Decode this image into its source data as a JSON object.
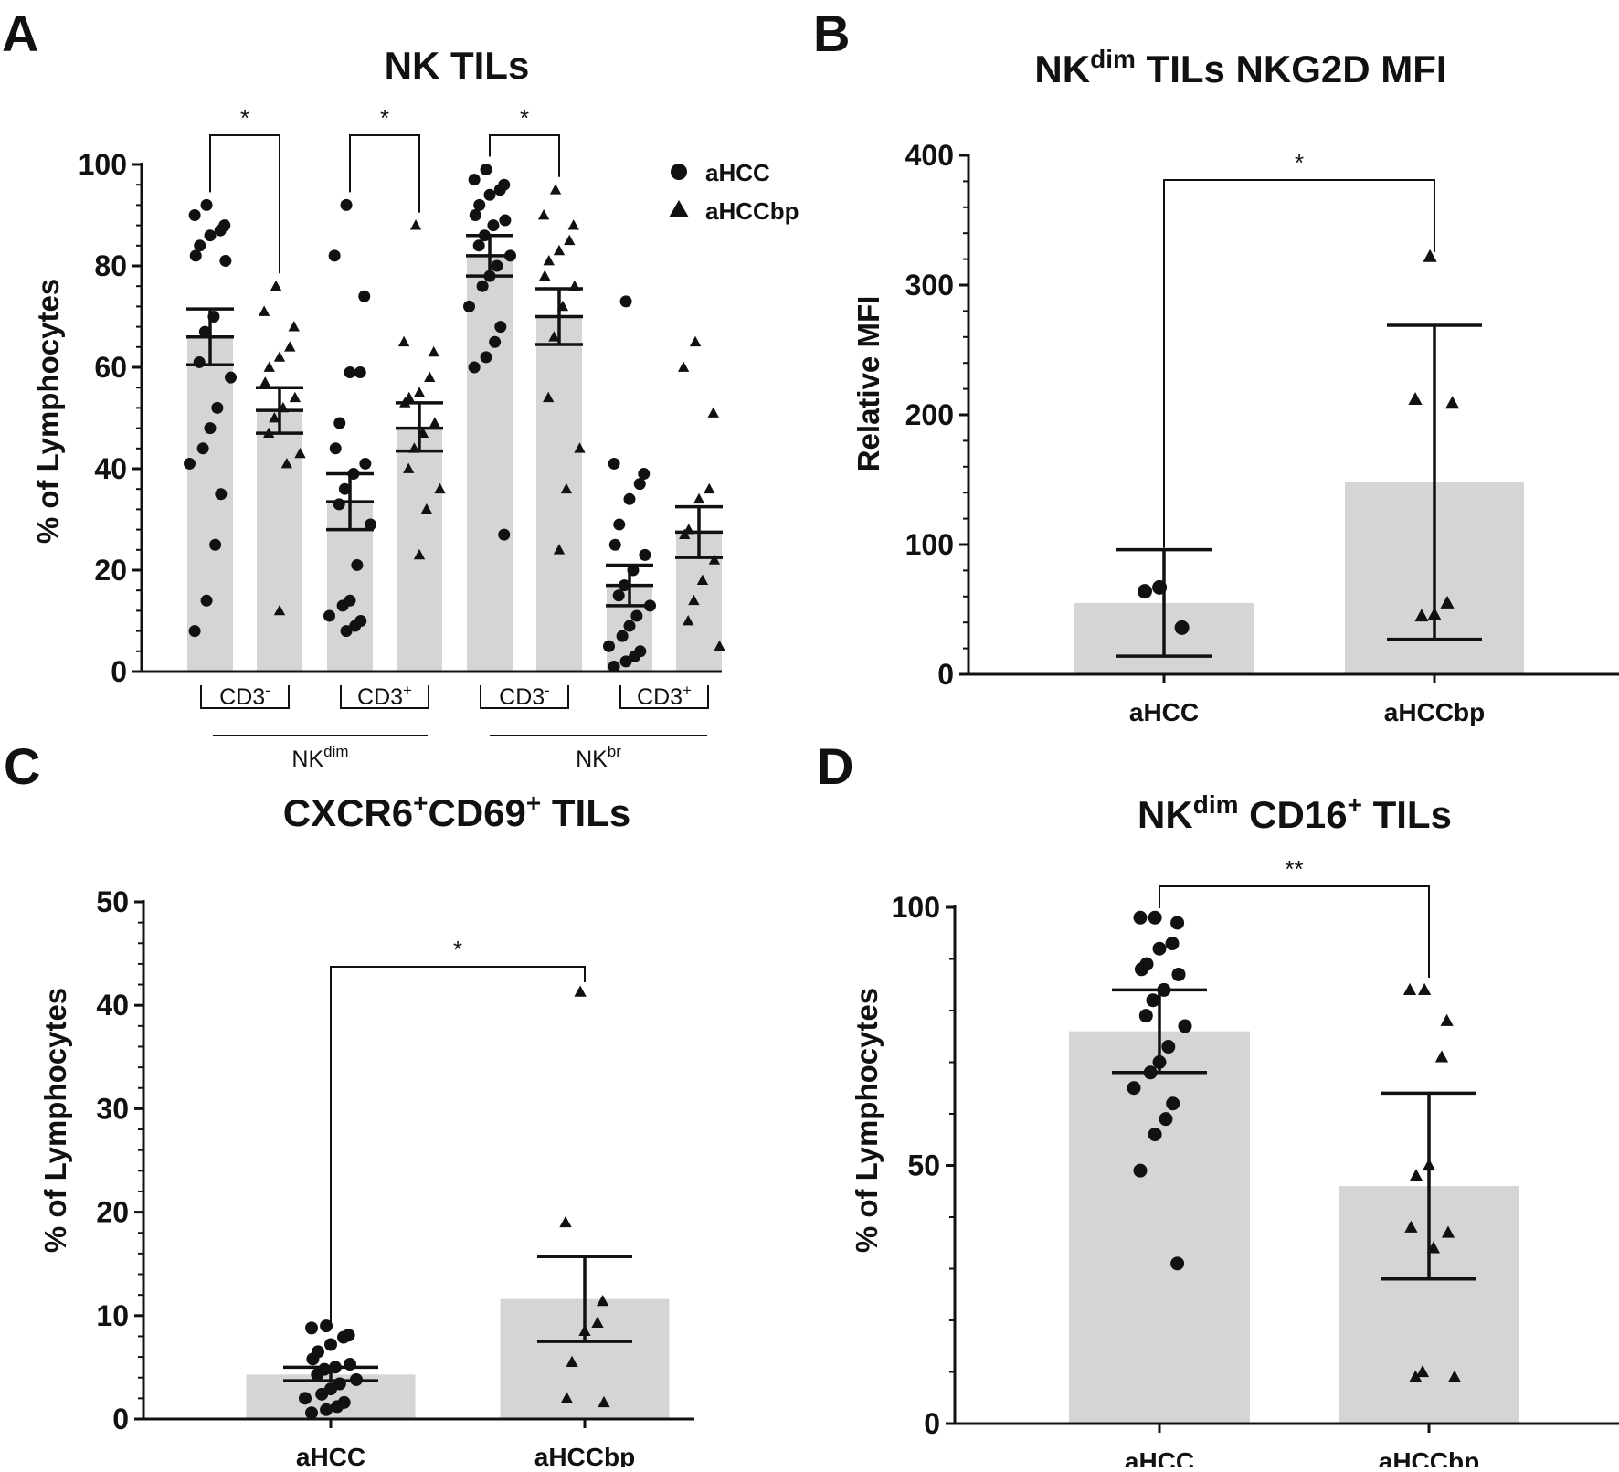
{
  "figure": {
    "legend": {
      "series": [
        "aHCC",
        "aHCCbp"
      ],
      "markers": [
        "circle",
        "triangle"
      ]
    }
  },
  "chart_data": [
    {
      "panel": "A",
      "type": "bar",
      "title": "NK TILs",
      "ylabel": "% of Lymphocytes",
      "ylim": [
        0,
        100
      ],
      "yticks": [
        0,
        20,
        40,
        60,
        80,
        100
      ],
      "categories": [
        "CD3-",
        "CD3+",
        "CD3-",
        "CD3+"
      ],
      "category_text": [
        {
          "base": "CD3",
          "sup": "-"
        },
        {
          "base": "CD3",
          "sup": "+"
        },
        {
          "base": "CD3",
          "sup": "-"
        },
        {
          "base": "CD3",
          "sup": "+"
        }
      ],
      "groups": [
        {
          "base": "NK",
          "sup": "dim"
        },
        {
          "base": "NK",
          "sup": "br"
        }
      ],
      "bars": [
        {
          "series": "aHCC",
          "mean": 66,
          "err_low": 60.5,
          "err_high": 71.5,
          "points": [
            92,
            90,
            88,
            87,
            86,
            84,
            82,
            81,
            70,
            67,
            61,
            58,
            52,
            48,
            44,
            41,
            35,
            25,
            14,
            8
          ]
        },
        {
          "series": "aHCCbp",
          "mean": 51.5,
          "err_low": 47,
          "err_high": 56,
          "points": [
            76,
            71,
            68,
            64,
            62,
            60,
            57,
            54,
            52,
            50,
            47,
            43,
            41,
            12
          ]
        },
        {
          "series": "aHCC",
          "mean": 33.5,
          "err_low": 28,
          "err_high": 39,
          "points": [
            92,
            82,
            74,
            59,
            59,
            49,
            44,
            41,
            39,
            36,
            33,
            29,
            21,
            14,
            13,
            11,
            10,
            9,
            8
          ]
        },
        {
          "series": "aHCCbp",
          "mean": 48,
          "err_low": 43.5,
          "err_high": 53,
          "points": [
            88,
            65,
            63,
            58,
            55,
            54,
            53,
            49,
            47,
            44,
            40,
            36,
            32,
            23
          ]
        },
        {
          "series": "aHCC",
          "mean": 82,
          "err_low": 78,
          "err_high": 86,
          "points": [
            99,
            97,
            96,
            95,
            94,
            92,
            90,
            89,
            88,
            86,
            84,
            82,
            80,
            78,
            76,
            72,
            68,
            65,
            62,
            60,
            27
          ]
        },
        {
          "series": "aHCCbp",
          "mean": 70,
          "err_low": 64.5,
          "err_high": 75.5,
          "points": [
            95,
            90,
            88,
            85,
            83,
            81,
            78,
            76,
            72,
            66,
            54,
            44,
            36,
            24
          ]
        },
        {
          "series": "aHCC",
          "mean": 17,
          "err_low": 13,
          "err_high": 21,
          "points": [
            73,
            41,
            39,
            37,
            34,
            29,
            25,
            23,
            20,
            17,
            15,
            13,
            11,
            9,
            7,
            5,
            4,
            3,
            2,
            1
          ]
        },
        {
          "series": "aHCCbp",
          "mean": 27.5,
          "err_low": 22.5,
          "err_high": 32.5,
          "points": [
            65,
            60,
            51,
            36,
            34,
            28,
            27,
            22,
            18,
            14,
            10,
            5
          ]
        }
      ],
      "significance": [
        {
          "from": 0,
          "to": 1,
          "label": "*"
        },
        {
          "from": 2,
          "to": 3,
          "label": "*"
        },
        {
          "from": 4,
          "to": 5,
          "label": "*"
        }
      ]
    },
    {
      "panel": "B",
      "type": "bar",
      "title": {
        "base": "NK",
        "sup": "dim",
        "rest": " TILs NKG2D MFI"
      },
      "ylabel": "Relative MFI",
      "ylim": [
        0,
        400
      ],
      "yticks": [
        0,
        100,
        200,
        300,
        400
      ],
      "categories": [
        "aHCC",
        "aHCCbp"
      ],
      "bars": [
        {
          "series": "aHCC",
          "mean": 55,
          "err_low": 14,
          "err_high": 96,
          "points": [
            67,
            64,
            36
          ]
        },
        {
          "series": "aHCCbp",
          "mean": 148,
          "err_low": 27,
          "err_high": 269,
          "points": [
            322,
            212,
            209,
            55,
            46,
            45
          ]
        }
      ],
      "significance": [
        {
          "from": 0,
          "to": 1,
          "label": "*"
        }
      ]
    },
    {
      "panel": "C",
      "type": "bar",
      "title": {
        "base": "CXCR6",
        "sup": "+",
        "mid": "CD69",
        "sup2": "+",
        "rest": " TILs"
      },
      "ylabel": "% of Lymphocytes",
      "ylim": [
        0,
        50
      ],
      "yticks": [
        0,
        10,
        20,
        30,
        40,
        50
      ],
      "categories": [
        "aHCC",
        "aHCCbp"
      ],
      "bars": [
        {
          "series": "aHCC",
          "mean": 4.3,
          "err_low": 3.7,
          "err_high": 5.0,
          "points": [
            9.0,
            8.8,
            8.1,
            7.9,
            7.2,
            6.5,
            5.8,
            5.3,
            5.0,
            4.8,
            4.3,
            3.8,
            3.4,
            2.9,
            2.4,
            2.0,
            1.6,
            1.2,
            0.9,
            0.6
          ]
        },
        {
          "series": "aHCCbp",
          "mean": 11.6,
          "err_low": 7.5,
          "err_high": 15.7,
          "points": [
            41.3,
            19.0,
            11.4,
            9.3,
            8.5,
            5.5,
            2.0,
            1.6
          ]
        }
      ],
      "significance": [
        {
          "from": 0,
          "to": 1,
          "label": "*"
        }
      ]
    },
    {
      "panel": "D",
      "type": "bar",
      "title": {
        "base": "NK",
        "sup": "dim",
        "mid": " CD16",
        "sup2": "+",
        "rest": " TILs"
      },
      "ylabel": "% of Lymphocytes",
      "ylim": [
        0,
        100
      ],
      "yticks": [
        0,
        50,
        100
      ],
      "categories": [
        "aHCC",
        "aHCCbp"
      ],
      "bars": [
        {
          "series": "aHCC",
          "mean": 76,
          "err_low": 68,
          "err_high": 84,
          "points": [
            98,
            98,
            97,
            93,
            92,
            89,
            88,
            87,
            84,
            82,
            79,
            77,
            73,
            70,
            68,
            65,
            62,
            59,
            56,
            49,
            31
          ]
        },
        {
          "series": "aHCCbp",
          "mean": 46,
          "err_low": 28,
          "err_high": 64,
          "points": [
            84,
            84,
            78,
            71,
            50,
            48,
            38,
            37,
            34,
            10,
            9,
            9
          ]
        }
      ],
      "significance": [
        {
          "from": 0,
          "to": 1,
          "label": "**"
        }
      ]
    }
  ]
}
